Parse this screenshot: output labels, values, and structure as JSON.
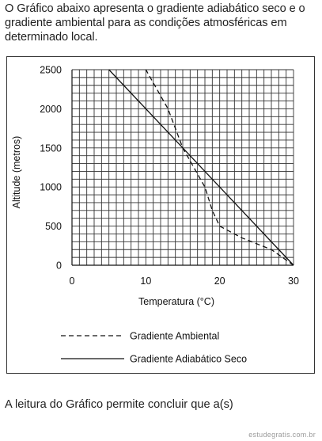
{
  "intro_text": "O Gráfico abaixo apresenta o gradiente adiabático seco e o gradiente ambiental para as condições atmosféricas em determinado local.",
  "question_text": "A leitura do Gráfico permite concluir que a(s)",
  "watermark": "estudegratis.com.br",
  "chart_data": {
    "type": "line",
    "title": "",
    "xlabel": "Temperatura (°C)",
    "ylabel": "Altitude (metros)",
    "xlim": [
      0,
      30
    ],
    "ylim": [
      0,
      2500
    ],
    "x_ticks": [
      0,
      10,
      20,
      30
    ],
    "x_tick_labels": [
      "0",
      "10",
      "20",
      "30"
    ],
    "y_ticks": [
      0,
      500,
      1000,
      1500,
      2000,
      2500
    ],
    "y_tick_labels": [
      "0",
      "500",
      "1000",
      "1500",
      "2000",
      "2500"
    ],
    "grid": true,
    "legend_position": "bottom",
    "series": [
      {
        "name": "Gradiente Ambiental",
        "line_style": "dashed",
        "color": "#111111",
        "points": [
          {
            "x": 30,
            "y": 0
          },
          {
            "x": 27,
            "y": 200
          },
          {
            "x": 23,
            "y": 350
          },
          {
            "x": 20,
            "y": 500
          },
          {
            "x": 19,
            "y": 700
          },
          {
            "x": 18,
            "y": 1000
          },
          {
            "x": 15,
            "y": 1500
          },
          {
            "x": 13,
            "y": 2000
          },
          {
            "x": 10,
            "y": 2500
          }
        ]
      },
      {
        "name": "Gradiente Adiabático Seco",
        "line_style": "solid",
        "color": "#111111",
        "points": [
          {
            "x": 30,
            "y": 0
          },
          {
            "x": 5,
            "y": 2500
          }
        ]
      }
    ]
  }
}
